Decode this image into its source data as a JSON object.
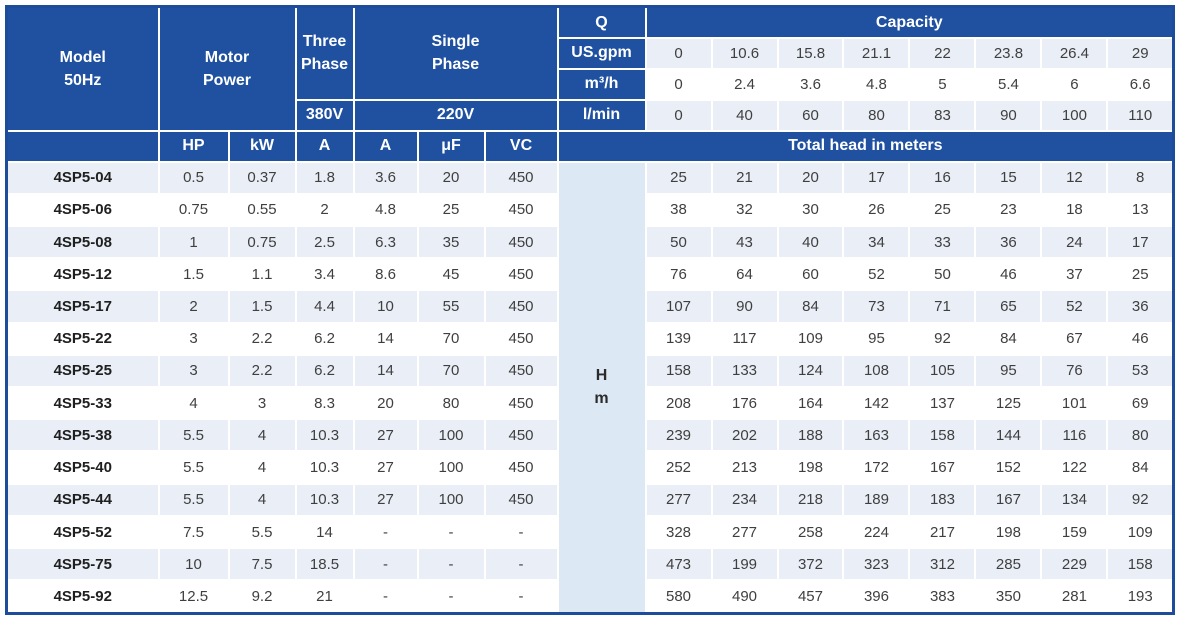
{
  "colors": {
    "header_blue": "#1f51a0",
    "border_blue": "#1c4c9a",
    "stripe_row_bg": "#e9eef7",
    "hm_cell_bg": "#dde8f5",
    "data_text": "#3f3f3f"
  },
  "table": {
    "header": {
      "model_label": "Model\n50Hz",
      "motor_power_label": "Motor\nPower",
      "three_phase_label": "Three\nPhase",
      "single_phase_label": "Single\nPhase",
      "three_phase_voltage": "380V",
      "single_phase_voltage": "220V",
      "q_label": "Q",
      "capacity_label": "Capacity",
      "flow_rows": [
        {
          "unit": "US.gpm",
          "values": [
            "0",
            "10.6",
            "15.8",
            "21.1",
            "22",
            "23.8",
            "26.4",
            "29"
          ]
        },
        {
          "unit": "m³/h",
          "values": [
            "0",
            "2.4",
            "3.6",
            "4.8",
            "5",
            "5.4",
            "6",
            "6.6"
          ]
        },
        {
          "unit": "l/min",
          "values": [
            "0",
            "40",
            "60",
            "80",
            "83",
            "90",
            "100",
            "110"
          ]
        }
      ],
      "sub_headers": [
        "HP",
        "kW",
        "A",
        "A",
        "μF",
        "VC"
      ],
      "blank_label": "",
      "total_head_label": "Total head in meters",
      "hm_label": "H\nm"
    },
    "rows": [
      {
        "model": "4SP5-04",
        "specs": [
          "0.5",
          "0.37",
          "1.8",
          "3.6",
          "20",
          "450"
        ],
        "heads": [
          "25",
          "21",
          "20",
          "17",
          "16",
          "15",
          "12",
          "8"
        ]
      },
      {
        "model": "4SP5-06",
        "specs": [
          "0.75",
          "0.55",
          "2",
          "4.8",
          "25",
          "450"
        ],
        "heads": [
          "38",
          "32",
          "30",
          "26",
          "25",
          "23",
          "18",
          "13"
        ]
      },
      {
        "model": "4SP5-08",
        "specs": [
          "1",
          "0.75",
          "2.5",
          "6.3",
          "35",
          "450"
        ],
        "heads": [
          "50",
          "43",
          "40",
          "34",
          "33",
          "36",
          "24",
          "17"
        ]
      },
      {
        "model": "4SP5-12",
        "specs": [
          "1.5",
          "1.1",
          "3.4",
          "8.6",
          "45",
          "450"
        ],
        "heads": [
          "76",
          "64",
          "60",
          "52",
          "50",
          "46",
          "37",
          "25"
        ]
      },
      {
        "model": "4SP5-17",
        "specs": [
          "2",
          "1.5",
          "4.4",
          "10",
          "55",
          "450"
        ],
        "heads": [
          "107",
          "90",
          "84",
          "73",
          "71",
          "65",
          "52",
          "36"
        ]
      },
      {
        "model": "4SP5-22",
        "specs": [
          "3",
          "2.2",
          "6.2",
          "14",
          "70",
          "450"
        ],
        "heads": [
          "139",
          "117",
          "109",
          "95",
          "92",
          "84",
          "67",
          "46"
        ]
      },
      {
        "model": "4SP5-25",
        "specs": [
          "3",
          "2.2",
          "6.2",
          "14",
          "70",
          "450"
        ],
        "heads": [
          "158",
          "133",
          "124",
          "108",
          "105",
          "95",
          "76",
          "53"
        ]
      },
      {
        "model": "4SP5-33",
        "specs": [
          "4",
          "3",
          "8.3",
          "20",
          "80",
          "450"
        ],
        "heads": [
          "208",
          "176",
          "164",
          "142",
          "137",
          "125",
          "101",
          "69"
        ]
      },
      {
        "model": "4SP5-38",
        "specs": [
          "5.5",
          "4",
          "10.3",
          "27",
          "100",
          "450"
        ],
        "heads": [
          "239",
          "202",
          "188",
          "163",
          "158",
          "144",
          "116",
          "80"
        ]
      },
      {
        "model": "4SP5-40",
        "specs": [
          "5.5",
          "4",
          "10.3",
          "27",
          "100",
          "450"
        ],
        "heads": [
          "252",
          "213",
          "198",
          "172",
          "167",
          "152",
          "122",
          "84"
        ]
      },
      {
        "model": "4SP5-44",
        "specs": [
          "5.5",
          "4",
          "10.3",
          "27",
          "100",
          "450"
        ],
        "heads": [
          "277",
          "234",
          "218",
          "189",
          "183",
          "167",
          "134",
          "92"
        ]
      },
      {
        "model": "4SP5-52",
        "specs": [
          "7.5",
          "5.5",
          "14",
          "-",
          "-",
          "-"
        ],
        "heads": [
          "328",
          "277",
          "258",
          "224",
          "217",
          "198",
          "159",
          "109"
        ]
      },
      {
        "model": "4SP5-75",
        "specs": [
          "10",
          "7.5",
          "18.5",
          "-",
          "-",
          "-"
        ],
        "heads": [
          "473",
          "199",
          "372",
          "323",
          "312",
          "285",
          "229",
          "158"
        ]
      },
      {
        "model": "4SP5-92",
        "specs": [
          "12.5",
          "9.2",
          "21",
          "-",
          "-",
          "-"
        ],
        "heads": [
          "580",
          "490",
          "457",
          "396",
          "383",
          "350",
          "281",
          "193"
        ]
      }
    ]
  }
}
